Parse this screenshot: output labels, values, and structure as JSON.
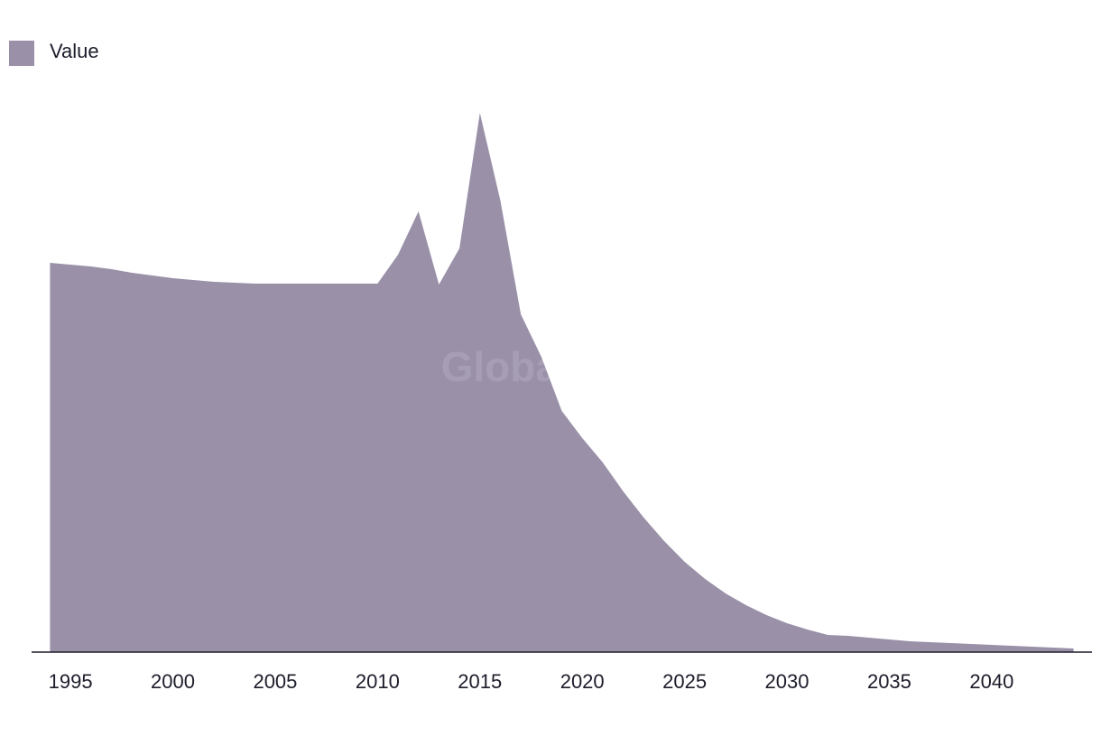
{
  "chart_data": {
    "type": "area",
    "watermark": "GlobalData",
    "x": [
      1994,
      1995,
      1996,
      1997,
      1998,
      1999,
      2000,
      2001,
      2002,
      2003,
      2004,
      2005,
      2006,
      2007,
      2008,
      2009,
      2010,
      2011,
      2012,
      2013,
      2014,
      2015,
      2016,
      2017,
      2018,
      2019,
      2020,
      2021,
      2022,
      2023,
      2024,
      2025,
      2026,
      2027,
      2028,
      2029,
      2030,
      2031,
      2032,
      2033,
      2034,
      2035,
      2036,
      2037,
      2038,
      2039,
      2040,
      2041,
      2042,
      2043,
      2044
    ],
    "series": [
      {
        "name": "Value",
        "color": "#9a91a9",
        "values": [
          431,
          429,
          427,
          424,
          420,
          417,
          414,
          412,
          410,
          409,
          408,
          408,
          408,
          408,
          408,
          408,
          408,
          440,
          488,
          407,
          447,
          597,
          500,
          374,
          327,
          267,
          237,
          210,
          178,
          149,
          123,
          100,
          81,
          65,
          52,
          41,
          32,
          25,
          19,
          18,
          16,
          14,
          12,
          11,
          10,
          9,
          8,
          7,
          6,
          5,
          4
        ]
      }
    ],
    "xlim": [
      1993.1,
      2044.9
    ],
    "xticks": [
      1995,
      2000,
      2005,
      2010,
      2015,
      2020,
      2025,
      2030,
      2035,
      2040
    ],
    "ylim": [
      0,
      620
    ],
    "grid": false,
    "legend": "top-left"
  }
}
